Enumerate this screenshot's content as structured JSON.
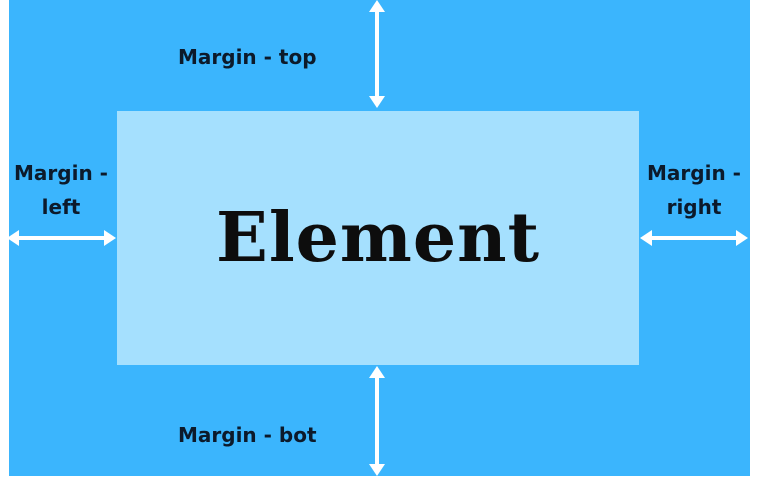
{
  "colors": {
    "margin_area": "#3bb5fd",
    "element_box": "#a5e0fe",
    "arrows": "#ffffff",
    "text": "#0c1a2b"
  },
  "element": {
    "label": "Element"
  },
  "margins": {
    "top": "Margin - top",
    "bottom": "Margin - bot",
    "left_line1": "Margin -",
    "left_line2": "left",
    "right_line1": "Margin -",
    "right_line2": "right"
  }
}
